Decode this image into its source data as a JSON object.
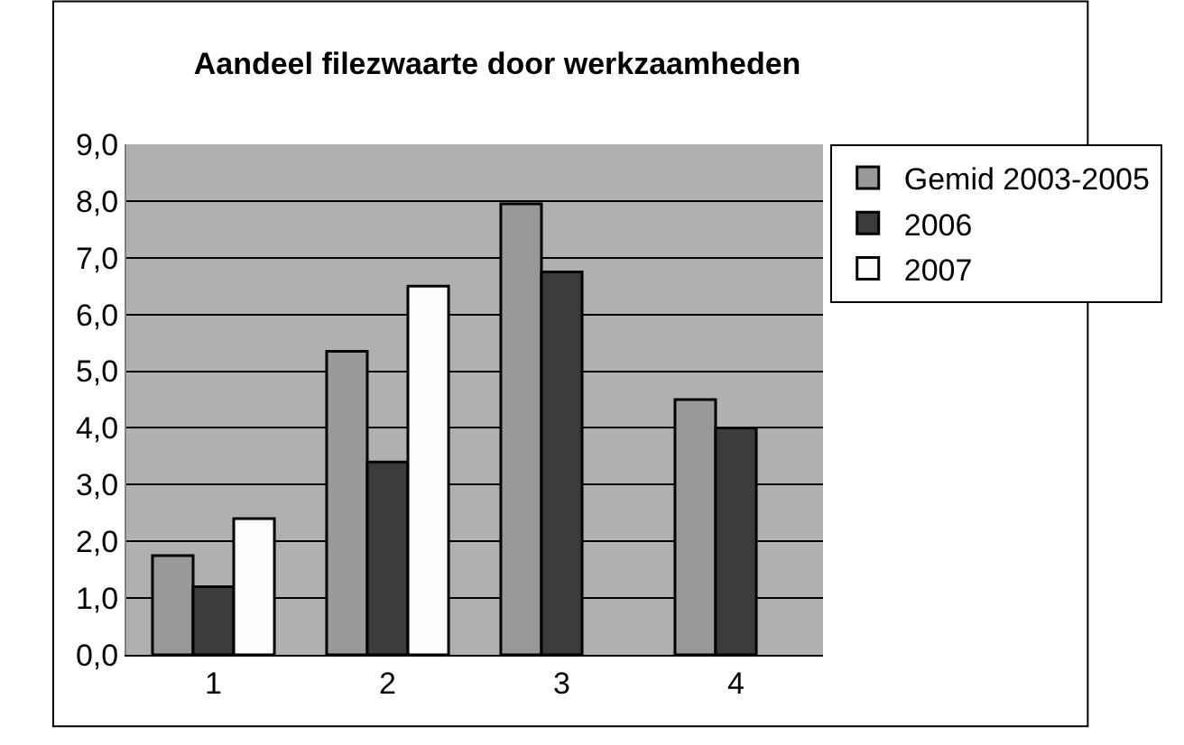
{
  "chart_data": {
    "type": "bar",
    "title": "Aandeel filezwaarte door werkzaamheden",
    "categories": [
      "1",
      "2",
      "3",
      "4"
    ],
    "series": [
      {
        "name": "Gemid 2003-2005",
        "color": "#999999",
        "values": [
          1.75,
          5.35,
          7.95,
          4.5
        ]
      },
      {
        "name": "2006",
        "color": "#3c3c3c",
        "values": [
          1.2,
          3.4,
          6.75,
          4.0
        ]
      },
      {
        "name": "2007",
        "color": "#fcfcfc",
        "values": [
          2.4,
          6.5,
          null,
          null
        ]
      }
    ],
    "ylim": [
      0,
      9
    ],
    "yticks": [
      {
        "value": 0,
        "label": "0,0"
      },
      {
        "value": 1,
        "label": "1,0"
      },
      {
        "value": 2,
        "label": "2,0"
      },
      {
        "value": 3,
        "label": "3,0"
      },
      {
        "value": 4,
        "label": "4,0"
      },
      {
        "value": 5,
        "label": "5,0"
      },
      {
        "value": 6,
        "label": "6,0"
      },
      {
        "value": 7,
        "label": "7,0"
      },
      {
        "value": 8,
        "label": "8,0"
      },
      {
        "value": 9,
        "label": "9,0"
      }
    ],
    "grid": "y",
    "legend": "right"
  }
}
